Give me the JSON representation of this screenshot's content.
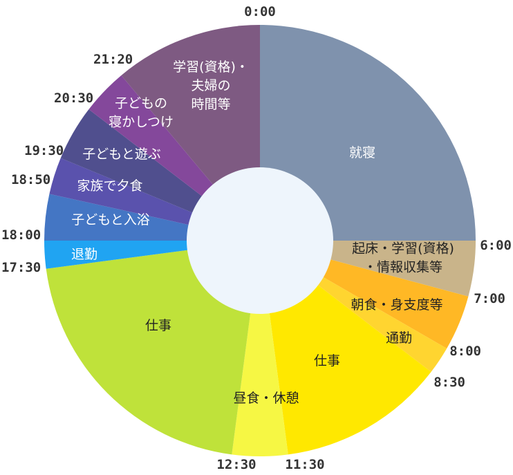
{
  "chart_data": {
    "type": "pie",
    "title": "",
    "hole_color": "#eef5fc",
    "segments": [
      {
        "label": "就寝",
        "start": "0:00",
        "end": "6:00",
        "color": "#7f92ad",
        "label_color": "#ffffff"
      },
      {
        "label": "起床・学習(資格)・情報収集等",
        "label_lines": [
          "起床・学習(資格)",
          "・情報収集等"
        ],
        "start": "6:00",
        "end": "7:00",
        "color": "#c9b48a",
        "label_color": "#222222"
      },
      {
        "label": "朝食・身支度等",
        "start": "7:00",
        "end": "8:00",
        "color": "#ffb825",
        "label_color": "#222222"
      },
      {
        "label": "通勤",
        "start": "8:00",
        "end": "8:30",
        "color": "#ffd530",
        "label_color": "#222222"
      },
      {
        "label": "仕事",
        "start": "8:30",
        "end": "11:30",
        "color": "#ffe800",
        "label_color": "#222222"
      },
      {
        "label": "昼食・休憩",
        "start": "11:30",
        "end": "12:30",
        "color": "#f6f744",
        "label_color": "#222222"
      },
      {
        "label": "仕事",
        "start": "12:30",
        "end": "17:30",
        "color": "#bfe23a",
        "label_color": "#222222"
      },
      {
        "label": "退勤",
        "start": "17:30",
        "end": "18:00",
        "color": "#20a4f2",
        "label_color": "#ffffff"
      },
      {
        "label": "子どもと入浴",
        "start": "18:00",
        "end": "18:50",
        "color": "#4476c4",
        "label_color": "#ffffff"
      },
      {
        "label": "家族で夕食",
        "start": "18:50",
        "end": "19:30",
        "color": "#5a52ad",
        "label_color": "#ffffff"
      },
      {
        "label": "子どもと遊ぶ",
        "start": "19:30",
        "end": "20:30",
        "color": "#504f8e",
        "label_color": "#ffffff"
      },
      {
        "label": "子どもの寝かしつけ",
        "label_lines": [
          "子どもの",
          "寝かしつけ"
        ],
        "start": "20:30",
        "end": "21:20",
        "color": "#84489b",
        "label_color": "#ffffff"
      },
      {
        "label": "学習(資格)・夫婦の時間等",
        "label_lines": [
          "学習(資格)・",
          "夫婦の",
          "時間等"
        ],
        "start": "21:20",
        "end": "24:00",
        "color": "#7e5a82",
        "label_color": "#ffffff"
      }
    ],
    "time_ticks": [
      "0:00",
      "6:00",
      "7:00",
      "8:00",
      "8:30",
      "11:30",
      "12:30",
      "17:30",
      "18:00",
      "18:50",
      "19:30",
      "20:30",
      "21:20"
    ]
  }
}
